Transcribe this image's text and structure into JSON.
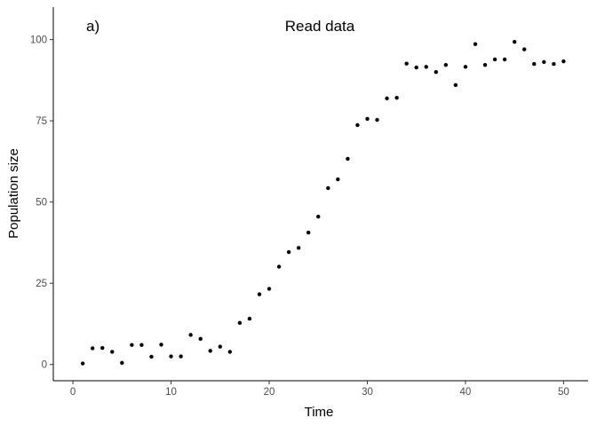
{
  "chart_data": {
    "type": "scatter",
    "title": "Read data",
    "panel_label": "a)",
    "xlabel": "Time",
    "ylabel": "Population size",
    "xlim": [
      -2,
      52.5
    ],
    "ylim": [
      -5,
      110
    ],
    "xticks": [
      0,
      10,
      20,
      30,
      40,
      50
    ],
    "yticks": [
      0,
      25,
      50,
      75,
      100
    ],
    "grid": false,
    "point_color": "#000000",
    "series": [
      {
        "x": [
          1,
          2,
          3,
          4,
          5,
          6,
          7,
          8,
          9,
          10,
          11,
          12,
          13,
          14,
          15,
          16,
          17,
          18,
          19,
          20,
          21,
          22,
          23,
          24,
          25,
          26,
          27,
          28,
          29,
          30,
          31,
          32,
          33,
          34,
          35,
          36,
          37,
          38,
          39,
          40,
          41,
          42,
          43,
          44,
          45,
          46,
          47,
          48,
          49,
          50
        ],
        "y": [
          0.3,
          5.0,
          5.1,
          3.9,
          0.5,
          6.0,
          6.0,
          2.4,
          6.1,
          2.5,
          2.5,
          9.1,
          7.9,
          4.2,
          5.5,
          3.9,
          12.8,
          14.1,
          21.6,
          23.3,
          30.1,
          34.6,
          35.9,
          40.6,
          45.5,
          54.3,
          57.0,
          63.3,
          73.7,
          75.6,
          75.3,
          81.9,
          82.1,
          92.6,
          91.4,
          91.6,
          90.0,
          92.2,
          86.0,
          91.6,
          98.6,
          92.2,
          93.9,
          93.9,
          99.3,
          97.0,
          92.5,
          93.1,
          92.5,
          93.3
        ]
      }
    ]
  }
}
